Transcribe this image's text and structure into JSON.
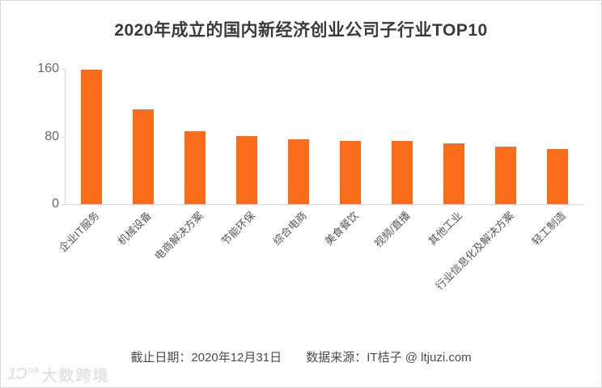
{
  "chart_data": {
    "type": "bar",
    "title": "2020年成立的国内新经济创业公司子行业TOP10",
    "categories": [
      "企业IT服务",
      "机械设备",
      "电商解决方案",
      "节能环保",
      "综合电商",
      "美食餐饮",
      "视频/直播",
      "其他工业",
      "行业信息化及解决方案",
      "轻工制造"
    ],
    "values": [
      159,
      112,
      86,
      80,
      77,
      75,
      75,
      72,
      68,
      65
    ],
    "xlabel": "",
    "ylabel": "",
    "ylim": [
      0,
      160
    ],
    "yticks": [
      0,
      80,
      160
    ],
    "grid": false,
    "legend": false,
    "bar_color": "#FB6D1A",
    "x_label_rotation_deg": -45
  },
  "footer": {
    "deadline": "截止日期：2020年12月31日",
    "source": "数据来源：IT桔子 @ ltjuzi.com"
  },
  "watermark": {
    "logo_glyph": "1Ɔ°°",
    "text": "大数跨境"
  },
  "colors": {
    "bar": "#FB6D1A",
    "title_text": "#3a3a3a",
    "axis_text": "#666666",
    "axis_line": "#d6d6d6",
    "footer_text": "#4b4b4b",
    "watermark_text": "#e3e3e3"
  }
}
